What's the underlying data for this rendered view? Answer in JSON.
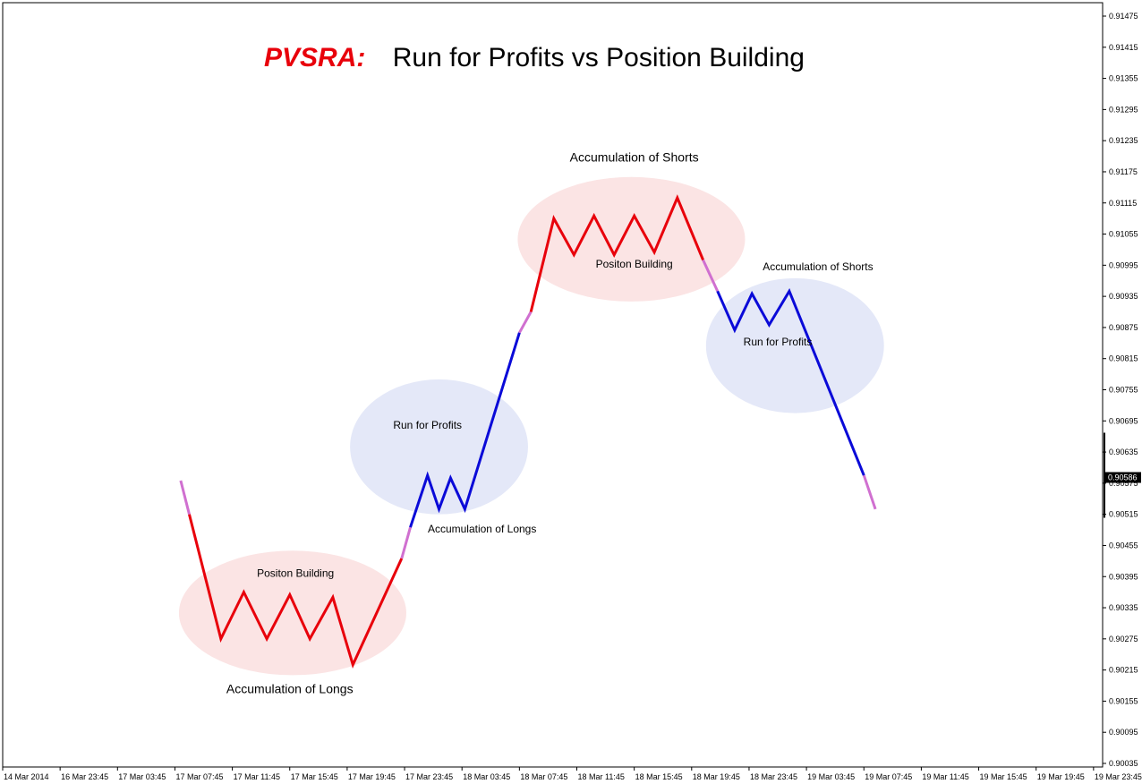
{
  "chart_data": {
    "type": "line",
    "title_prefix": "PVSRA:",
    "title": "Run for Profits vs Position Building",
    "y_ticks": [
      "0.91475",
      "0.91415",
      "0.91355",
      "0.91295",
      "0.91235",
      "0.91175",
      "0.91115",
      "0.91055",
      "0.90995",
      "0.90935",
      "0.90875",
      "0.90815",
      "0.90755",
      "0.90695",
      "0.90635",
      "0.90575",
      "0.90515",
      "0.90455",
      "0.90395",
      "0.90335",
      "0.90275",
      "0.90215",
      "0.90155",
      "0.90095",
      "0.90035"
    ],
    "ylim": [
      0.90035,
      0.91475
    ],
    "current_price": "0.90586",
    "x_ticks": [
      "14 Mar 2014",
      "16 Mar 23:45",
      "17 Mar 03:45",
      "17 Mar 07:45",
      "17 Mar 11:45",
      "17 Mar 15:45",
      "17 Mar 19:45",
      "17 Mar 23:45",
      "18 Mar 03:45",
      "18 Mar 07:45",
      "18 Mar 11:45",
      "18 Mar 15:45",
      "18 Mar 19:45",
      "18 Mar 23:45",
      "19 Mar 03:45",
      "19 Mar 07:45",
      "19 Mar 11:45",
      "19 Mar 15:45",
      "19 Mar 19:45",
      "19 Mar 23:45"
    ],
    "grid": false,
    "colors": {
      "position_building": "#e8000b",
      "run_for_profits": "#0a0ad8",
      "transition": "#d070d0",
      "pink_zone": "#fbe4e4",
      "blue_zone": "#e4e8f8",
      "title_prefix": "#e8000b"
    },
    "series": [
      {
        "color_key": "transition",
        "points": [
          [
            3.1,
            0.9058
          ],
          [
            3.25,
            0.90515
          ]
        ]
      },
      {
        "color_key": "position_building",
        "points": [
          [
            3.25,
            0.90515
          ],
          [
            3.8,
            0.90275
          ],
          [
            4.2,
            0.90365
          ],
          [
            4.6,
            0.90275
          ],
          [
            5.0,
            0.9036
          ],
          [
            5.35,
            0.90275
          ],
          [
            5.75,
            0.90355
          ],
          [
            6.1,
            0.90225
          ],
          [
            6.95,
            0.9043
          ]
        ]
      },
      {
        "color_key": "transition",
        "points": [
          [
            6.95,
            0.9043
          ],
          [
            7.1,
            0.9049
          ]
        ]
      },
      {
        "color_key": "run_for_profits",
        "points": [
          [
            7.1,
            0.9049
          ],
          [
            7.4,
            0.9059
          ],
          [
            7.6,
            0.90525
          ],
          [
            7.8,
            0.90585
          ],
          [
            8.05,
            0.90525
          ],
          [
            9.0,
            0.90865
          ]
        ]
      },
      {
        "color_key": "transition",
        "points": [
          [
            9.0,
            0.90865
          ],
          [
            9.2,
            0.90905
          ]
        ]
      },
      {
        "color_key": "position_building",
        "points": [
          [
            9.2,
            0.90905
          ],
          [
            9.6,
            0.91085
          ],
          [
            9.95,
            0.91015
          ],
          [
            10.3,
            0.9109
          ],
          [
            10.65,
            0.91015
          ],
          [
            11.0,
            0.9109
          ],
          [
            11.35,
            0.9102
          ],
          [
            11.75,
            0.91125
          ],
          [
            12.2,
            0.91005
          ]
        ]
      },
      {
        "color_key": "transition",
        "points": [
          [
            12.2,
            0.91005
          ],
          [
            12.45,
            0.90945
          ]
        ]
      },
      {
        "color_key": "run_for_profits",
        "points": [
          [
            12.45,
            0.90945
          ],
          [
            12.75,
            0.9087
          ],
          [
            13.05,
            0.9094
          ],
          [
            13.35,
            0.9088
          ],
          [
            13.7,
            0.90945
          ],
          [
            15.0,
            0.9059
          ]
        ]
      },
      {
        "color_key": "transition",
        "points": [
          [
            15.0,
            0.9059
          ],
          [
            15.2,
            0.90525
          ]
        ]
      }
    ],
    "zones": [
      {
        "kind": "pink",
        "cx": 5.05,
        "cy": 0.90325,
        "rx": 1.98,
        "ry": 0.0012,
        "inner_label": "Positon Building",
        "inner_y": 0.90395,
        "outer_label": "Accumulation of Longs",
        "outer_y": 0.9017,
        "outer_x": 5.0,
        "outer_size": "large",
        "inner_x": 5.1
      },
      {
        "kind": "blue",
        "cx": 7.6,
        "cy": 0.90645,
        "rx": 1.55,
        "ry": 0.0013,
        "inner_label": "Run for Profits",
        "inner_y": 0.9068,
        "inner_x": 7.4,
        "outer_label": "Accumulation of Longs",
        "outer_y": 0.9048,
        "outer_x": 8.35,
        "outer_size": "small"
      },
      {
        "kind": "pink",
        "cx": 10.95,
        "cy": 0.91045,
        "rx": 1.98,
        "ry": 0.0012,
        "inner_label": "Positon Building",
        "inner_y": 0.9099,
        "inner_x": 11.0,
        "outer_label": "Accumulation of Shorts",
        "outer_y": 0.91195,
        "outer_x": 11.0,
        "outer_size": "large"
      },
      {
        "kind": "blue",
        "cx": 13.8,
        "cy": 0.9084,
        "rx": 1.55,
        "ry": 0.0013,
        "inner_label": "Run for Profits",
        "inner_y": 0.9084,
        "inner_x": 13.5,
        "outer_label": "Accumulation of Shorts",
        "outer_y": 0.90985,
        "outer_x": 14.2,
        "outer_size": "small"
      }
    ]
  }
}
